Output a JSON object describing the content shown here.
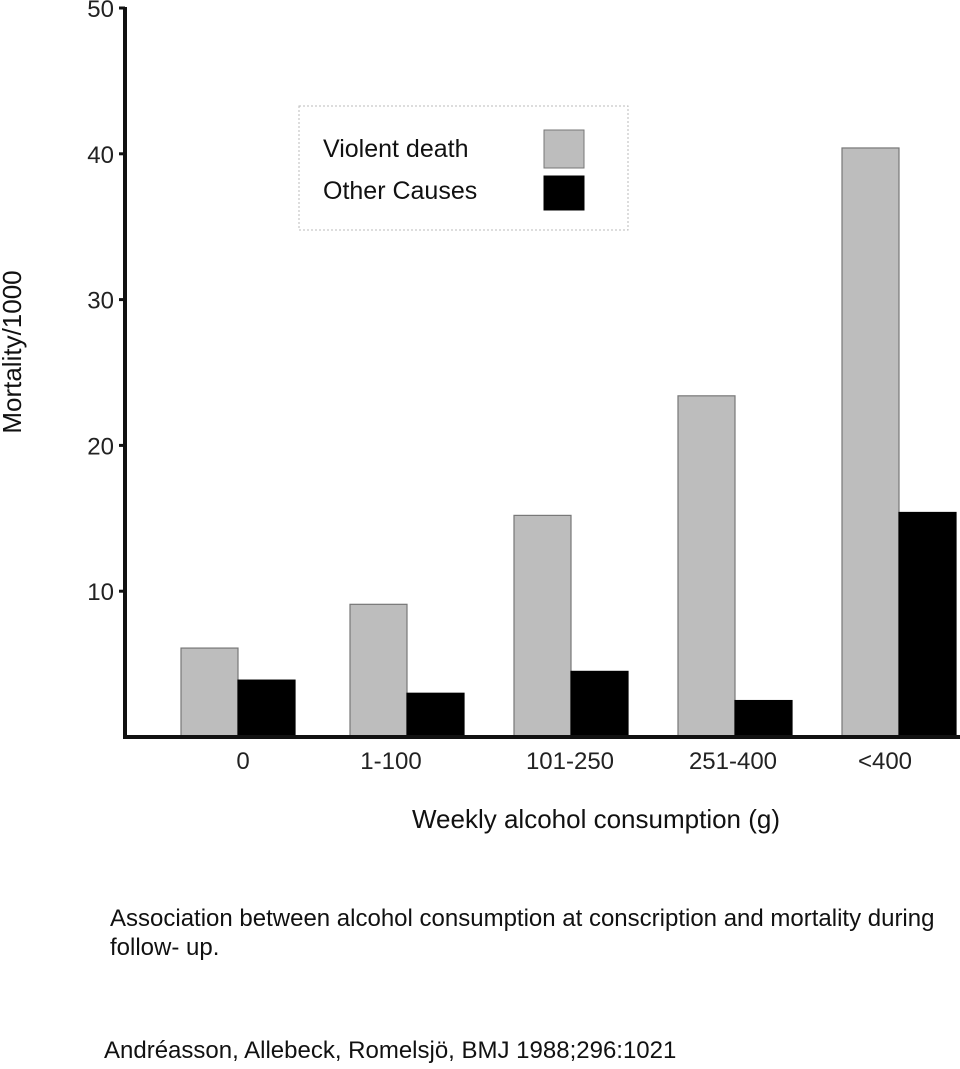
{
  "chart_data": {
    "type": "bar",
    "title": "",
    "xlabel": "Weekly alcohol consumption (g)",
    "ylabel": "Mortality/1000",
    "categories": [
      "0",
      "1-100",
      "101-250",
      "251-400",
      "<400"
    ],
    "series": [
      {
        "name": "Violent death",
        "color": "#bdbdbd",
        "values": [
          6.1,
          9.1,
          15.2,
          23.4,
          40.4
        ]
      },
      {
        "name": "Other Causes",
        "color": "#000000",
        "values": [
          3.9,
          3.0,
          4.5,
          2.5,
          15.4
        ]
      }
    ],
    "ylim": [
      0,
      50
    ],
    "yticks": [
      10,
      20,
      30,
      40,
      50
    ],
    "grid": false,
    "legend": "top-left"
  },
  "caption": "Association between alcohol consumption at conscription and mortality during follow- up.",
  "citation": "Andréasson, Allebeck, Romelsjö, BMJ 1988;296:1021"
}
